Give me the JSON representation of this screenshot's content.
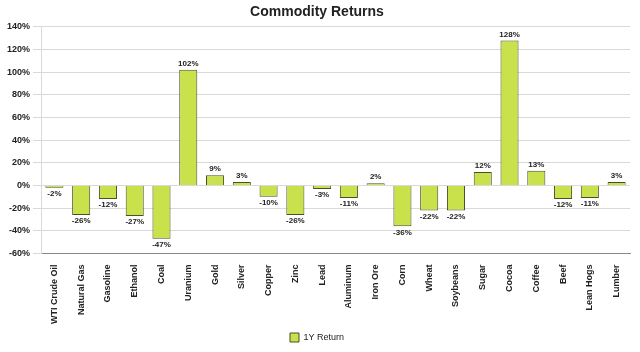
{
  "chart_data": {
    "type": "bar",
    "title": "Commodity Returns",
    "categories": [
      "WTI Crude Oil",
      "Natural Gas",
      "Gasoline",
      "Ethanol",
      "Coal",
      "Uranium",
      "Gold",
      "Silver",
      "Copper",
      "Zinc",
      "Lead",
      "Aluminum",
      "Iron Ore",
      "Corn",
      "Wheat",
      "Soybeans",
      "Sugar",
      "Cocoa",
      "Coffee",
      "Beef",
      "Lean Hogs",
      "Lumber"
    ],
    "series": [
      {
        "name": "1Y Return",
        "color": "#c9e24b",
        "values": [
          -2,
          -26,
          -12,
          -27,
          -47,
          102,
          9,
          3,
          -10,
          -26,
          -3,
          -11,
          2,
          -36,
          -22,
          -22,
          12,
          128,
          13,
          -12,
          -11,
          3
        ],
        "value_labels": [
          "-2%",
          "-26%",
          "-12%",
          "-27%",
          "-47%",
          "102%",
          "9%",
          "3%",
          "-10%",
          "-26%",
          "-3%",
          "-11%",
          "2%",
          "-36%",
          "-22%",
          "-22%",
          "12%",
          "128%",
          "13%",
          "-12%",
          "-11%",
          "3%"
        ]
      }
    ],
    "ylim": [
      -60,
      140
    ],
    "yticks": [
      {
        "value": -60,
        "label": "-60%"
      },
      {
        "value": -40,
        "label": "-40%"
      },
      {
        "value": -20,
        "label": "-20%"
      },
      {
        "value": 0,
        "label": "0%"
      },
      {
        "value": 20,
        "label": "20%"
      },
      {
        "value": 40,
        "label": "40%"
      },
      {
        "value": 60,
        "label": "60%"
      },
      {
        "value": 80,
        "label": "80%"
      },
      {
        "value": 100,
        "label": "100%"
      },
      {
        "value": 120,
        "label": "120%"
      },
      {
        "value": 140,
        "label": "140%"
      }
    ],
    "grid": true,
    "legend": "bottom",
    "data_labels": true
  }
}
